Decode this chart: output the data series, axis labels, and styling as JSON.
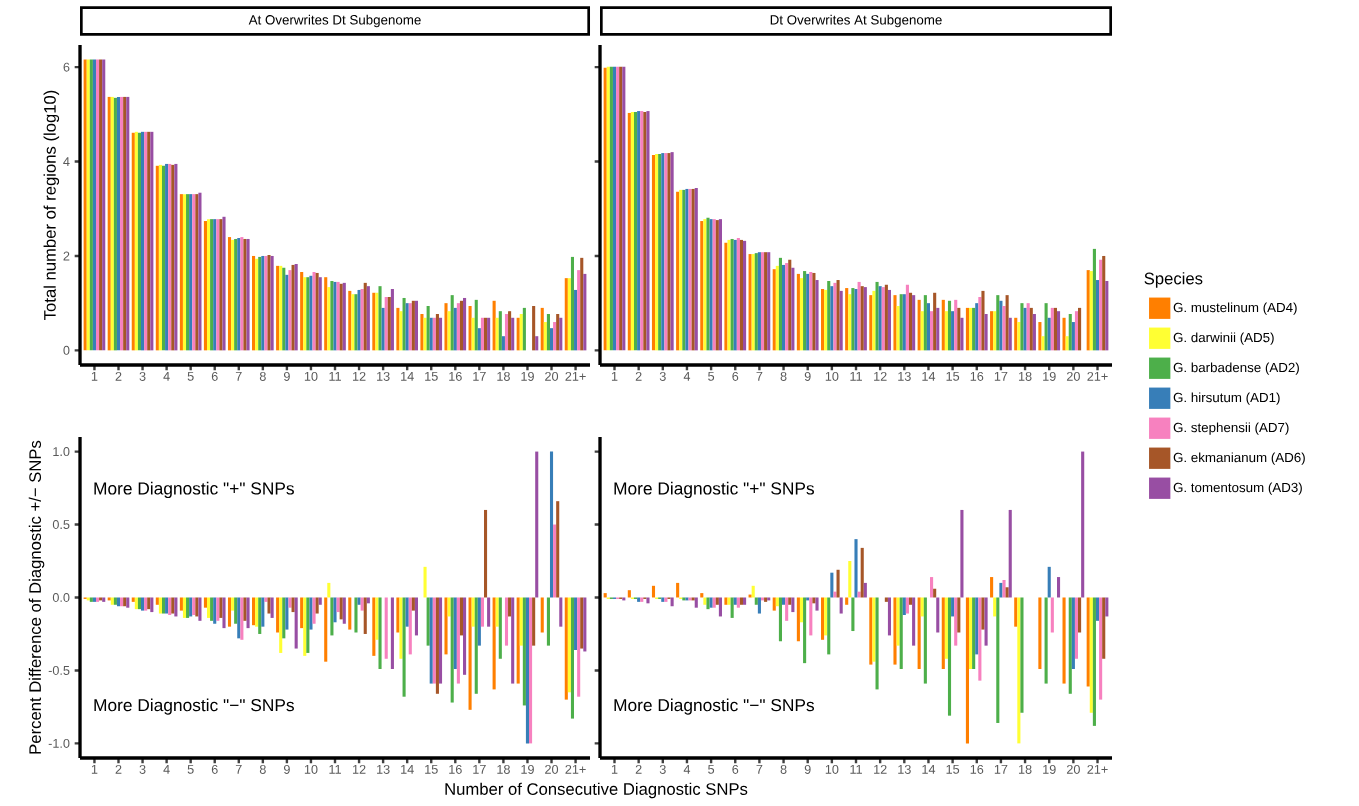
{
  "chart_data": [
    {
      "type": "bar",
      "title": "At Overwrites Dt Subgenome",
      "ylabel": "Total number of regions (log10)",
      "categories": [
        "1",
        "2",
        "3",
        "4",
        "5",
        "6",
        "7",
        "8",
        "9",
        "10",
        "11",
        "12",
        "13",
        "14",
        "15",
        "16",
        "17",
        "18",
        "19",
        "20",
        "21+"
      ],
      "ylim": [
        -0.31,
        6.47
      ],
      "yticks": [
        0,
        2,
        4,
        6
      ],
      "series": [
        {
          "color": "#ff7f00",
          "values": [
            6.16,
            5.37,
            4.61,
            3.91,
            3.31,
            2.74,
            2.4,
            2.0,
            1.79,
            1.66,
            1.55,
            1.26,
            1.22,
            0.9,
            0.77,
            1.0,
            0.94,
            1.05,
            0.69,
            0.9,
            1.53
          ]
        },
        {
          "color": "#ffff33",
          "values": [
            6.16,
            5.37,
            4.63,
            3.93,
            3.31,
            2.78,
            2.34,
            1.94,
            1.79,
            1.55,
            1.34,
            1.19,
            1.22,
            0.83,
            0.69,
            0.83,
            0.69,
            0.69,
            0.77,
            0.6,
            1.53
          ]
        },
        {
          "color": "#4daf4a",
          "values": [
            6.16,
            5.35,
            4.61,
            3.91,
            3.31,
            2.78,
            2.36,
            1.98,
            1.75,
            1.55,
            1.47,
            1.19,
            1.36,
            1.11,
            0.94,
            1.17,
            1.07,
            0.83,
            0.9,
            0.77,
            1.98
          ]
        },
        {
          "color": "#377eb8",
          "values": [
            6.16,
            5.37,
            4.63,
            3.95,
            3.31,
            2.78,
            2.38,
            2.0,
            1.6,
            1.58,
            1.45,
            1.28,
            0.9,
            1.0,
            0.69,
            0.9,
            0.47,
            0.3,
            null,
            0.47,
            1.28
          ]
        },
        {
          "color": "#f781bf",
          "values": [
            6.16,
            5.37,
            4.63,
            3.95,
            3.31,
            2.78,
            2.4,
            2.0,
            1.7,
            1.66,
            1.45,
            1.3,
            1.13,
            1.0,
            0.69,
            1.0,
            0.69,
            0.77,
            0,
            0.6,
            1.7
          ]
        },
        {
          "color": "#a65628",
          "values": [
            6.16,
            5.37,
            4.63,
            3.93,
            3.31,
            2.78,
            2.36,
            2.02,
            1.81,
            1.64,
            1.41,
            1.43,
            1.13,
            1.05,
            0.77,
            1.05,
            0.69,
            0.83,
            0.94,
            0.77,
            1.96
          ]
        },
        {
          "color": "#984ea3",
          "values": [
            6.16,
            5.37,
            4.63,
            3.95,
            3.34,
            2.83,
            2.36,
            2.0,
            1.83,
            1.55,
            1.43,
            1.36,
            1.3,
            1.05,
            0.69,
            1.11,
            0.69,
            0.69,
            0.3,
            0.69,
            1.62
          ]
        }
      ]
    },
    {
      "type": "bar",
      "title": "Dt Overwrites At Subgenome",
      "tick_labels": "x",
      "legend": "right",
      "legend_title": "Species",
      "categories": [
        "1",
        "2",
        "3",
        "4",
        "5",
        "6",
        "7",
        "8",
        "9",
        "10",
        "11",
        "12",
        "13",
        "14",
        "15",
        "16",
        "17",
        "18",
        "19",
        "20",
        "21+"
      ],
      "ylim": [
        -0.31,
        6.47
      ],
      "yticks": [
        0,
        2,
        4,
        6
      ],
      "series": [
        {
          "name": "G. mustelinum (AD4)",
          "color": "#ff7f00",
          "values": [
            5.99,
            5.03,
            4.14,
            3.36,
            2.74,
            2.28,
            2.04,
            1.72,
            1.62,
            1.3,
            1.32,
            1.17,
            1.17,
            1.07,
            1.07,
            0.9,
            0.83,
            0.69,
            0.6,
            0.69,
            1.7
          ]
        },
        {
          "name": "G. darwinii (AD5)",
          "color": "#ffff33",
          "values": [
            6.01,
            5.05,
            4.16,
            3.4,
            2.78,
            2.34,
            2.04,
            1.79,
            1.53,
            1.28,
            1.19,
            1.26,
            0.94,
            0.83,
            0.83,
            0.9,
            0.83,
            0.6,
            0.3,
            0.3,
            1.68
          ]
        },
        {
          "name": "G. barbadense (AD2)",
          "color": "#4daf4a",
          "values": [
            6.01,
            5.05,
            4.16,
            3.4,
            2.81,
            2.36,
            2.06,
            1.96,
            1.68,
            1.47,
            1.32,
            1.45,
            1.19,
            1.17,
            1.05,
            0.9,
            1.17,
            1.0,
            1.0,
            0.77,
            2.15
          ]
        },
        {
          "name": "G. hirsutum (AD1)",
          "color": "#377eb8",
          "values": [
            6.01,
            5.07,
            4.18,
            3.42,
            2.78,
            2.34,
            2.08,
            1.81,
            1.62,
            1.36,
            1.3,
            1.36,
            1.19,
            1.0,
            0.83,
            1.0,
            1.05,
            0.9,
            0.69,
            0.6,
            1.49
          ]
        },
        {
          "name": "G. stephensii (AD7)",
          "color": "#f781bf",
          "values": [
            6.01,
            5.07,
            4.18,
            3.42,
            2.78,
            2.38,
            2.08,
            1.85,
            1.66,
            1.43,
            1.45,
            1.34,
            1.39,
            0.83,
            1.07,
            1.13,
            0.94,
            1.0,
            0.9,
            0.83,
            1.92
          ]
        },
        {
          "name": "G. ekmanianum (AD6)",
          "color": "#a65628",
          "values": [
            6.01,
            5.05,
            4.18,
            3.42,
            2.76,
            2.34,
            2.08,
            1.92,
            1.64,
            1.49,
            1.36,
            1.39,
            1.22,
            1.22,
            0.9,
            1.26,
            1.17,
            0.9,
            0.9,
            0.9,
            2.0
          ]
        },
        {
          "name": "G. tomentosum (AD3)",
          "color": "#984ea3",
          "values": [
            6.01,
            5.07,
            4.2,
            3.44,
            2.78,
            2.32,
            2.08,
            1.75,
            1.49,
            1.26,
            1.34,
            1.28,
            1.17,
            0.9,
            0.69,
            0.77,
            0.69,
            0.77,
            0.83,
            0,
            1.47
          ]
        }
      ]
    },
    {
      "type": "bar",
      "ylabel": "Percent Difference of Diagnostic +/− SNPs",
      "xlabel": "Number of Consecutive Diagnostic SNPs",
      "annotations": [
        "More Diagnostic \"+\" SNPs",
        "More Diagnostic \"−\" SNPs"
      ],
      "categories": [
        "1",
        "2",
        "3",
        "4",
        "5",
        "6",
        "7",
        "8",
        "9",
        "10",
        "11",
        "12",
        "13",
        "14",
        "15",
        "16",
        "17",
        "18",
        "19",
        "20",
        "21+"
      ],
      "ylim": [
        -1.1,
        1.1
      ],
      "yticks": [
        {
          "value": -1,
          "label": "-1.0"
        },
        {
          "value": -0.5,
          "label": "-0.5"
        },
        {
          "value": 0,
          "label": "0.0"
        },
        0.5,
        {
          "value": 1,
          "label": "1.0"
        }
      ],
      "series": [
        {
          "color": "#ff7f00",
          "values": [
            -0.01,
            -0.02,
            -0.03,
            -0.05,
            -0.09,
            -0.07,
            -0.2,
            -0.19,
            -0.24,
            -0.21,
            -0.44,
            -0.22,
            -0.4,
            -0.24,
            null,
            -0.39,
            -0.77,
            -0.63,
            -0.59,
            -0.24,
            -0.7
          ]
        },
        {
          "color": "#ffff33",
          "values": [
            -0.02,
            -0.05,
            -0.08,
            -0.11,
            -0.14,
            -0.14,
            -0.09,
            -0.2,
            -0.38,
            -0.4,
            0.1,
            null,
            -0.29,
            -0.42,
            0.21,
            -0.13,
            -0.2,
            -0.2,
            -0.33,
            null,
            -0.65
          ]
        },
        {
          "color": "#4daf4a",
          "values": [
            -0.03,
            -0.05,
            -0.08,
            -0.11,
            -0.14,
            -0.16,
            -0.18,
            -0.25,
            -0.28,
            -0.38,
            -0.26,
            -0.24,
            -0.49,
            -0.68,
            -0.33,
            -0.72,
            -0.66,
            -0.42,
            -0.74,
            -0.33,
            -0.83
          ]
        },
        {
          "color": "#377eb8",
          "values": [
            -0.03,
            -0.06,
            -0.09,
            -0.11,
            -0.13,
            -0.18,
            -0.28,
            -0.2,
            -0.22,
            -0.22,
            -0.17,
            -0.05,
            null,
            -0.2,
            -0.59,
            -0.49,
            -0.33,
            null,
            -1.0,
            1.0,
            -0.36
          ]
        },
        {
          "color": "#f781bf",
          "values": [
            -0.03,
            -0.06,
            -0.09,
            -0.12,
            -0.12,
            -0.16,
            -0.29,
            -0.03,
            -0.07,
            -0.18,
            -0.1,
            -0.09,
            -0.42,
            -0.39,
            -0.59,
            -0.59,
            -0.2,
            -0.33,
            -1.0,
            0.5,
            -0.68
          ]
        },
        {
          "color": "#a65628",
          "values": [
            -0.02,
            -0.06,
            -0.08,
            -0.11,
            -0.13,
            -0.14,
            -0.16,
            -0.11,
            -0.1,
            -0.11,
            -0.15,
            -0.25,
            null,
            -0.09,
            -0.66,
            -0.26,
            0.6,
            -0.13,
            -0.33,
            0.66,
            -0.35
          ]
        },
        {
          "color": "#984ea3",
          "values": [
            -0.03,
            -0.07,
            -0.1,
            -0.13,
            -0.16,
            -0.21,
            -0.21,
            -0.14,
            -0.35,
            -0.05,
            -0.18,
            -0.04,
            -0.49,
            -0.26,
            -0.59,
            -0.53,
            -0.2,
            -0.59,
            1.0,
            -0.2,
            -0.37
          ]
        }
      ]
    },
    {
      "type": "bar",
      "tick_labels": "x",
      "annotations": [
        "More Diagnostic \"+\" SNPs",
        "More Diagnostic \"−\" SNPs"
      ],
      "categories": [
        "1",
        "2",
        "3",
        "4",
        "5",
        "6",
        "7",
        "8",
        "9",
        "10",
        "11",
        "12",
        "13",
        "14",
        "15",
        "16",
        "17",
        "18",
        "19",
        "20",
        "21+"
      ],
      "ylim": [
        -1.1,
        1.1
      ],
      "yticks": [
        -1,
        -0.5,
        0,
        0.5,
        1
      ],
      "series": [
        {
          "color": "#ff7f00",
          "values": [
            0.03,
            0.05,
            0.08,
            0.1,
            0.03,
            -0.05,
            0.02,
            -0.09,
            -0.3,
            -0.29,
            -0.05,
            -0.46,
            -0.46,
            -0.49,
            -0.49,
            -1.0,
            0.14,
            -0.2,
            -0.49,
            -0.59,
            -0.61
          ]
        },
        {
          "color": "#ffff33",
          "values": [
            -0.01,
            -0.01,
            -0.01,
            -0.01,
            -0.05,
            -0.05,
            0.08,
            -0.06,
            -0.17,
            -0.26,
            0.25,
            -0.44,
            -0.33,
            -0.13,
            -0.42,
            -0.49,
            -0.13,
            -1.0,
            null,
            null,
            -0.79
          ]
        },
        {
          "color": "#4daf4a",
          "values": [
            -0.01,
            -0.01,
            -0.01,
            -0.02,
            -0.08,
            -0.14,
            -0.05,
            -0.3,
            -0.45,
            -0.39,
            -0.23,
            -0.63,
            -0.49,
            -0.59,
            -0.81,
            -0.49,
            -0.86,
            -0.79,
            -0.59,
            -0.66,
            -0.88
          ]
        },
        {
          "color": "#377eb8",
          "values": [
            -0.01,
            -0.03,
            -0.03,
            -0.02,
            -0.07,
            -0.05,
            -0.11,
            -0.05,
            -0.02,
            0.17,
            0.4,
            null,
            -0.12,
            null,
            -0.13,
            -0.39,
            0.1,
            null,
            0.21,
            -0.49,
            -0.16
          ]
        },
        {
          "color": "#f781bf",
          "values": [
            -0.01,
            -0.03,
            -0.03,
            -0.02,
            -0.07,
            -0.07,
            -0.02,
            -0.16,
            -0.26,
            0.04,
            0.04,
            null,
            -0.11,
            0.14,
            -0.33,
            -0.57,
            0.12,
            null,
            -0.24,
            -0.42,
            -0.7
          ]
        },
        {
          "color": "#a65628",
          "values": [
            -0.01,
            -0.01,
            -0.01,
            -0.02,
            -0.05,
            -0.05,
            -0.03,
            -0.05,
            -0.04,
            0.19,
            0.34,
            -0.03,
            -0.05,
            0.06,
            -0.24,
            -0.22,
            0.07,
            null,
            null,
            -0.24,
            -0.42
          ]
        },
        {
          "color": "#984ea3",
          "values": [
            -0.02,
            -0.04,
            -0.06,
            -0.07,
            -0.13,
            -0.05,
            -0.02,
            -0.1,
            -0.09,
            -0.11,
            0.1,
            -0.26,
            -0.33,
            -0.24,
            0.6,
            -0.33,
            0.6,
            null,
            0.14,
            1.0,
            -0.13
          ]
        }
      ]
    }
  ]
}
